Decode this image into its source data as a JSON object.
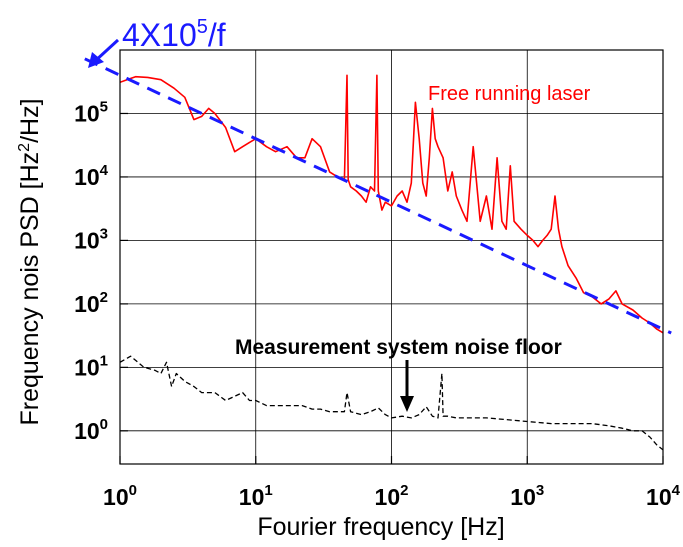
{
  "chart_data": {
    "type": "line",
    "xlabel": "Fourier frequency [Hz]",
    "ylabel_prefix": "Frequency nois PSD [Hz",
    "ylabel_sup": "2",
    "ylabel_suffix": "/Hz]",
    "x_scale": "log",
    "y_scale": "log",
    "xlim": [
      1,
      10000
    ],
    "ylim": [
      0.3,
      1000000
    ],
    "grid": true,
    "x_ticks": [
      {
        "base": "10",
        "exp": "0"
      },
      {
        "base": "10",
        "exp": "1"
      },
      {
        "base": "10",
        "exp": "2"
      },
      {
        "base": "10",
        "exp": "3"
      },
      {
        "base": "10",
        "exp": "4"
      }
    ],
    "y_ticks": [
      {
        "base": "10",
        "exp": "0"
      },
      {
        "base": "10",
        "exp": "1"
      },
      {
        "base": "10",
        "exp": "2"
      },
      {
        "base": "10",
        "exp": "3"
      },
      {
        "base": "10",
        "exp": "4"
      },
      {
        "base": "10",
        "exp": "5"
      }
    ],
    "series": [
      {
        "name": "Free running laser",
        "color": "#ff0000",
        "style": "solid",
        "x": [
          1.0,
          1.3,
          1.6,
          2.0,
          2.5,
          3.0,
          3.5,
          4.0,
          4.5,
          5.0,
          6.0,
          7.0,
          8.0,
          9.0,
          10,
          12,
          14,
          17,
          20,
          23,
          26,
          30,
          35,
          40,
          45,
          47,
          48,
          50,
          55,
          60,
          65,
          70,
          75,
          78,
          80,
          85,
          90,
          100,
          110,
          120,
          130,
          140,
          150,
          160,
          170,
          180,
          190,
          200,
          210,
          220,
          240,
          260,
          280,
          300,
          330,
          360,
          400,
          450,
          500,
          550,
          600,
          650,
          700,
          750,
          800,
          900,
          1000,
          1100,
          1200,
          1300,
          1400,
          1500,
          1600,
          1700,
          1800,
          2000,
          2300,
          2600,
          3000,
          3500,
          4000,
          4500,
          5000,
          6000,
          7000,
          8000,
          9000,
          10000
        ],
        "y": [
          310000,
          380000,
          370000,
          340000,
          250000,
          180000,
          80000,
          90000,
          120000,
          100000,
          60000,
          25000,
          30000,
          35000,
          40000,
          30000,
          25000,
          30000,
          20000,
          20000,
          40000,
          30000,
          12000,
          10000,
          9000,
          400000,
          9000,
          7000,
          6000,
          5000,
          4000,
          7000,
          6000,
          400000,
          6000,
          3000,
          4000,
          3500,
          5000,
          6000,
          4000,
          8000,
          150000,
          40000,
          8000,
          5000,
          20000,
          120000,
          40000,
          30000,
          20000,
          6000,
          12000,
          5000,
          3000,
          2000,
          30000,
          2000,
          5000,
          1500,
          20000,
          2000,
          1500,
          15000,
          2000,
          1500,
          1200,
          1000,
          800,
          1000,
          1200,
          1500,
          5000,
          1500,
          800,
          400,
          250,
          150,
          130,
          100,
          120,
          160,
          100,
          80,
          60,
          50,
          40,
          35
        ]
      },
      {
        "name": "Measurement system noise floor",
        "color": "#000000",
        "style": "dashed",
        "x": [
          1.0,
          1.2,
          1.5,
          1.8,
          2.0,
          2.2,
          2.4,
          2.6,
          3.0,
          3.5,
          4.0,
          5.0,
          6.0,
          7.0,
          8.0,
          9.0,
          10,
          12,
          15,
          18,
          22,
          26,
          30,
          35,
          40,
          45,
          47,
          50,
          60,
          70,
          80,
          90,
          100,
          120,
          140,
          160,
          180,
          200,
          220,
          235,
          240,
          260,
          300,
          400,
          500,
          700,
          1000,
          1500,
          2000,
          3000,
          4000,
          5000,
          6000,
          7000,
          8000,
          9000,
          10000
        ],
        "y": [
          12,
          15,
          10,
          9,
          8,
          12,
          5,
          8,
          6,
          5,
          4,
          4,
          3,
          3.5,
          4,
          3,
          3,
          2.5,
          2.5,
          2.5,
          2.5,
          2.2,
          2.2,
          2,
          2,
          2,
          4,
          2,
          1.8,
          2,
          2.3,
          1.8,
          1.6,
          1.7,
          1.6,
          1.8,
          2.4,
          1.7,
          1.6,
          8,
          1.7,
          1.7,
          1.6,
          1.6,
          1.6,
          1.5,
          1.4,
          1.3,
          1.3,
          1.3,
          1.2,
          1.1,
          1.0,
          1.0,
          0.8,
          0.6,
          0.5
        ]
      },
      {
        "name": "4X10^5/f",
        "color": "#1a1aff",
        "style": "dashed",
        "x": [
          0.55,
          11500
        ],
        "y": [
          727272.7,
          34.78
        ]
      }
    ],
    "annotations": {
      "fit_label_base": "4X10",
      "fit_label_exp": "5",
      "fit_label_suffix": "/f",
      "laser_label": "Free running laser",
      "noise_label": "Measurement system noise floor"
    }
  }
}
